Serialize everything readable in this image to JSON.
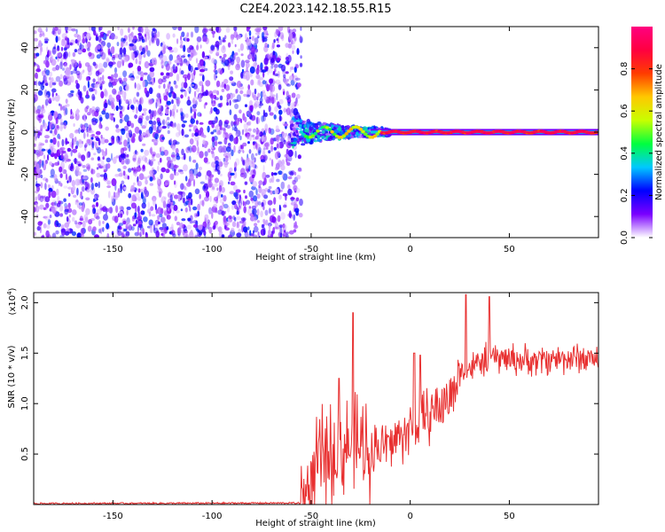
{
  "figure": {
    "title": "C2E4.2023.142.18.55.R15"
  },
  "chart_data": [
    {
      "type": "heatmap",
      "xlabel": "Height of straight line (km)",
      "ylabel": "Frequency (Hz)",
      "xlim": [
        -190,
        95
      ],
      "ylim": [
        -50,
        50
      ],
      "xticks": [
        -150,
        -100,
        -50,
        0,
        50
      ],
      "yticks": [
        -40,
        -20,
        0,
        20,
        40
      ],
      "colorbar": {
        "label": "Normalized spectral amplitude",
        "range": [
          0.0,
          1.0
        ],
        "ticks": [
          0.0,
          0.2,
          0.4,
          0.6,
          0.8
        ],
        "tick_labels": [
          "0.0",
          "0.2",
          "0.4",
          "0.6",
          "0.8"
        ],
        "colors": [
          "#ffffff",
          "#7a00ff",
          "#0000ff",
          "#00c8ff",
          "#00ff40",
          "#c8ff00",
          "#ffc800",
          "#ff3c00",
          "#ff0040",
          "#ff0080"
        ]
      },
      "features": {
        "noise_region_x": [
          -190,
          -58
        ],
        "signal_start_x": -60,
        "signal_frequency_hz": 0,
        "signal_band_half_width_hz": 1.5
      },
      "grid": false
    },
    {
      "type": "line",
      "xlabel": "Height of straight line (km)",
      "ylabel": "SNR (10 * v/v)",
      "y_multiplier_label": "(x10",
      "y_multiplier_exp": "4",
      "y_multiplier_close": ")",
      "xlim": [
        -190,
        95
      ],
      "ylim": [
        0,
        2.1
      ],
      "xticks": [
        -150,
        -100,
        -50,
        0,
        50
      ],
      "yticks": [
        0.5,
        1.0,
        1.5,
        2.0
      ],
      "ytick_labels": [
        "0.5",
        "1.0",
        "1.5",
        "2.0"
      ],
      "line_color": "#e83030",
      "envelope": [
        {
          "x": -190,
          "y": 0.01
        },
        {
          "x": -55,
          "y": 0.015
        },
        {
          "x": -50,
          "y": 0.2
        },
        {
          "x": -45,
          "y": 0.45
        },
        {
          "x": -40,
          "y": 0.5
        },
        {
          "x": -30,
          "y": 0.6
        },
        {
          "x": -20,
          "y": 0.55
        },
        {
          "x": -10,
          "y": 0.6
        },
        {
          "x": 0,
          "y": 0.75
        },
        {
          "x": 10,
          "y": 0.9
        },
        {
          "x": 20,
          "y": 1.05
        },
        {
          "x": 25,
          "y": 1.3
        },
        {
          "x": 30,
          "y": 1.35
        },
        {
          "x": 40,
          "y": 1.45
        },
        {
          "x": 50,
          "y": 1.45
        },
        {
          "x": 60,
          "y": 1.42
        },
        {
          "x": 75,
          "y": 1.45
        },
        {
          "x": 95,
          "y": 1.45
        }
      ],
      "spikes": [
        {
          "x": -29,
          "y": 1.9
        },
        {
          "x": 28,
          "y": 2.08
        },
        {
          "x": 40,
          "y": 2.06
        },
        {
          "x": 2,
          "y": 1.5
        },
        {
          "x": 5,
          "y": 1.48
        },
        {
          "x": -36,
          "y": 1.25
        }
      ],
      "grid": false
    }
  ]
}
